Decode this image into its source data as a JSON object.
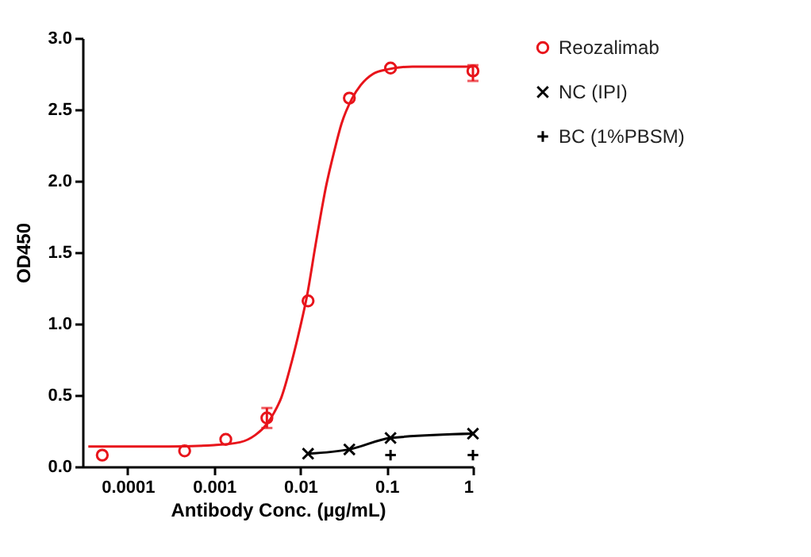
{
  "chart_data": {
    "type": "scatter",
    "xlabel": "Antibody Conc. (µg/mL)",
    "ylabel": "OD450",
    "log": "x",
    "xlim": [
      3e-05,
      1
    ],
    "xticks": [
      0.0001,
      0.001,
      0.01,
      0.1,
      1
    ],
    "ylim": [
      0,
      3
    ],
    "yticks": [
      {
        "value": 0,
        "label": "0.0"
      },
      0.5,
      {
        "value": 1,
        "label": "1.0"
      },
      1.5,
      {
        "value": 2,
        "label": "2.0"
      },
      2.5,
      {
        "value": 3,
        "label": "3.0"
      }
    ],
    "grid": false,
    "legend": "right",
    "x": [
      5.08e-05,
      0.000457,
      0.00137,
      0.0041,
      0.0123,
      0.037,
      0.111,
      1
    ],
    "series": [
      {
        "name": "Reozalimab",
        "type": "scatter",
        "marker": "circle",
        "color": "#e8141b",
        "values": [
          0.08,
          0.11,
          0.19,
          0.34,
          1.16,
          2.58,
          2.79,
          2.77
        ],
        "errors": [
          null,
          null,
          null,
          [
            0.27,
            0.41
          ],
          null,
          null,
          null,
          [
            2.7,
            2.81
          ]
        ]
      },
      {
        "type": "line",
        "marker": "none",
        "color": "#e8141b",
        "x": [
          3.5e-05,
          0.0001,
          0.0003,
          0.001,
          0.002,
          0.003,
          0.004,
          0.005,
          0.006,
          0.008,
          0.01,
          0.012,
          0.015,
          0.02,
          0.025,
          0.03,
          0.04,
          0.05,
          0.07,
          0.1,
          0.2,
          0.5,
          1
        ],
        "values": [
          0.14,
          0.14,
          0.14,
          0.15,
          0.17,
          0.22,
          0.29,
          0.38,
          0.48,
          0.74,
          0.98,
          1.2,
          1.55,
          1.97,
          2.22,
          2.4,
          2.58,
          2.67,
          2.75,
          2.78,
          2.8,
          2.8,
          2.8
        ]
      },
      {
        "name": "NC (IPI)",
        "type": "line",
        "marker": "cross",
        "color": "#000000",
        "x": [
          0.0123,
          0.037,
          0.111,
          1
        ],
        "values": [
          0.09,
          0.12,
          0.2,
          0.23
        ]
      },
      {
        "name": "BC (1%PBSM)",
        "type": "scatter",
        "marker": "plus",
        "color": "#000000",
        "x": [
          0.111,
          1
        ],
        "values": [
          0.08,
          0.08
        ]
      }
    ]
  }
}
